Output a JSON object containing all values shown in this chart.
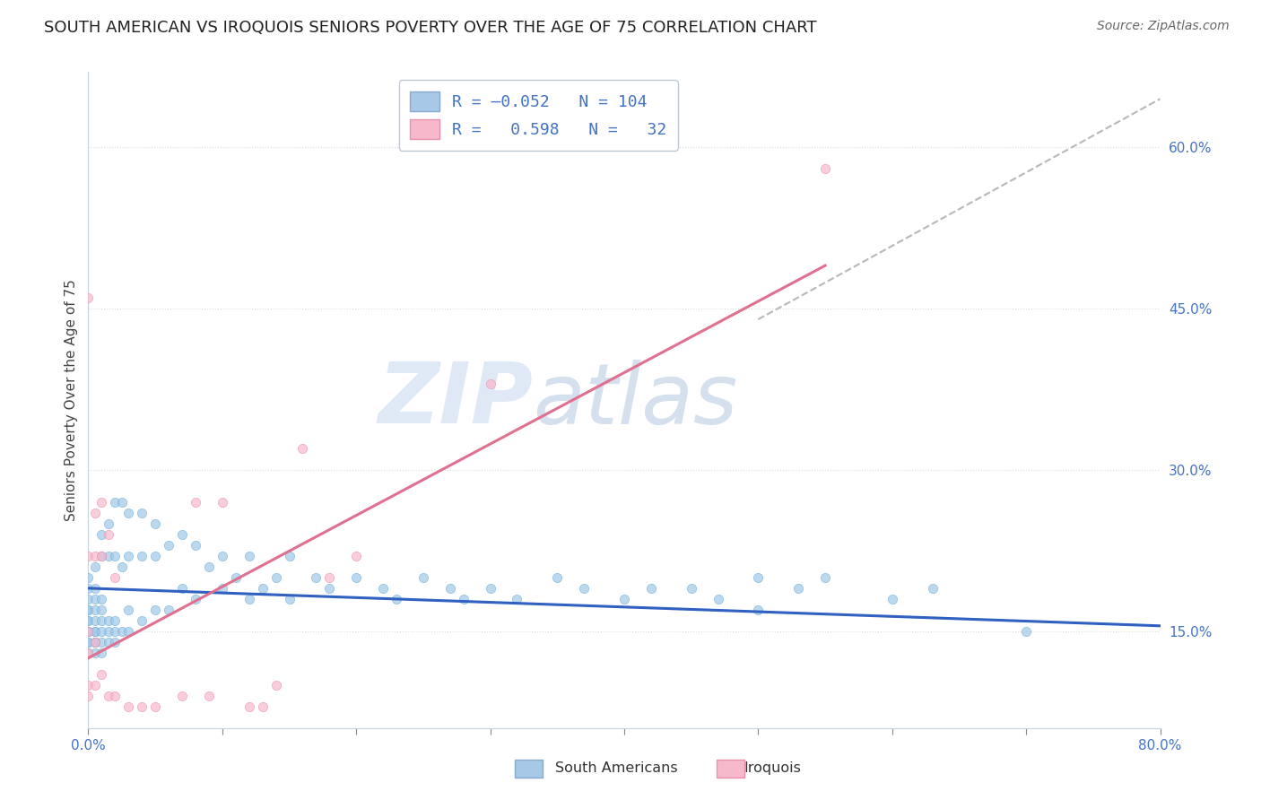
{
  "title": "SOUTH AMERICAN VS IROQUOIS SENIORS POVERTY OVER THE AGE OF 75 CORRELATION CHART",
  "source": "Source: ZipAtlas.com",
  "ylabel": "Seniors Poverty Over the Age of 75",
  "xlim": [
    0.0,
    0.8
  ],
  "ylim": [
    0.06,
    0.67
  ],
  "yticks": [
    0.15,
    0.3,
    0.45,
    0.6
  ],
  "yticklabels": [
    "15.0%",
    "30.0%",
    "45.0%",
    "60.0%"
  ],
  "blue_scatter_x": [
    0.0,
    0.0,
    0.0,
    0.0,
    0.0,
    0.0,
    0.0,
    0.0,
    0.0,
    0.0,
    0.0,
    0.0,
    0.005,
    0.005,
    0.005,
    0.005,
    0.005,
    0.005,
    0.005,
    0.005,
    0.005,
    0.005,
    0.01,
    0.01,
    0.01,
    0.01,
    0.01,
    0.01,
    0.01,
    0.01,
    0.015,
    0.015,
    0.015,
    0.015,
    0.015,
    0.02,
    0.02,
    0.02,
    0.02,
    0.02,
    0.025,
    0.025,
    0.025,
    0.03,
    0.03,
    0.03,
    0.03,
    0.04,
    0.04,
    0.04,
    0.05,
    0.05,
    0.05,
    0.06,
    0.06,
    0.07,
    0.07,
    0.08,
    0.08,
    0.09,
    0.1,
    0.1,
    0.11,
    0.12,
    0.12,
    0.13,
    0.14,
    0.15,
    0.15,
    0.17,
    0.18,
    0.2,
    0.22,
    0.23,
    0.25,
    0.27,
    0.28,
    0.3,
    0.32,
    0.35,
    0.37,
    0.4,
    0.42,
    0.45,
    0.47,
    0.5,
    0.5,
    0.53,
    0.55,
    0.6,
    0.63,
    0.7
  ],
  "blue_scatter_y": [
    0.13,
    0.14,
    0.14,
    0.15,
    0.15,
    0.16,
    0.16,
    0.17,
    0.17,
    0.18,
    0.19,
    0.2,
    0.13,
    0.14,
    0.14,
    0.15,
    0.15,
    0.16,
    0.17,
    0.18,
    0.19,
    0.21,
    0.13,
    0.14,
    0.15,
    0.16,
    0.17,
    0.18,
    0.22,
    0.24,
    0.14,
    0.15,
    0.16,
    0.22,
    0.25,
    0.14,
    0.15,
    0.16,
    0.22,
    0.27,
    0.15,
    0.21,
    0.27,
    0.15,
    0.17,
    0.22,
    0.26,
    0.16,
    0.22,
    0.26,
    0.17,
    0.22,
    0.25,
    0.17,
    0.23,
    0.19,
    0.24,
    0.18,
    0.23,
    0.21,
    0.19,
    0.22,
    0.2,
    0.18,
    0.22,
    0.19,
    0.2,
    0.18,
    0.22,
    0.2,
    0.19,
    0.2,
    0.19,
    0.18,
    0.2,
    0.19,
    0.18,
    0.19,
    0.18,
    0.2,
    0.19,
    0.18,
    0.19,
    0.19,
    0.18,
    0.2,
    0.17,
    0.19,
    0.2,
    0.18,
    0.19,
    0.15
  ],
  "pink_scatter_x": [
    0.0,
    0.0,
    0.0,
    0.0,
    0.0,
    0.0,
    0.005,
    0.005,
    0.005,
    0.005,
    0.01,
    0.01,
    0.01,
    0.015,
    0.015,
    0.02,
    0.02,
    0.03,
    0.04,
    0.05,
    0.07,
    0.08,
    0.09,
    0.1,
    0.12,
    0.13,
    0.14,
    0.16,
    0.18,
    0.2,
    0.3,
    0.55
  ],
  "pink_scatter_y": [
    0.09,
    0.1,
    0.13,
    0.15,
    0.22,
    0.46,
    0.1,
    0.14,
    0.22,
    0.26,
    0.11,
    0.22,
    0.27,
    0.09,
    0.24,
    0.09,
    0.2,
    0.08,
    0.08,
    0.08,
    0.09,
    0.27,
    0.09,
    0.27,
    0.08,
    0.08,
    0.1,
    0.32,
    0.2,
    0.22,
    0.38,
    0.58
  ],
  "blue_line": {
    "x0": 0.0,
    "x1": 0.8,
    "y0": 0.19,
    "y1": 0.155
  },
  "pink_line": {
    "x0": 0.0,
    "x1": 0.55,
    "y0": 0.125,
    "y1": 0.49
  },
  "gray_dashed_line": {
    "x0": 0.5,
    "x1": 0.8,
    "y0": 0.44,
    "y1": 0.645
  },
  "title_fontsize": 13,
  "axis_label_fontsize": 11,
  "tick_fontsize": 11,
  "watermark_zip": "ZIP",
  "watermark_atlas": "atlas",
  "bg_color": "#ffffff",
  "dot_alpha": 0.7,
  "dot_size": 55,
  "blue_dot_color": "#9ec8e8",
  "blue_dot_edge": "#6aaad4",
  "pink_dot_color": "#f8b8cc",
  "pink_dot_edge": "#e888a8",
  "blue_line_color": "#3060c0",
  "pink_line_color": "#e07090",
  "gray_line_color": "#b8b8b8",
  "tick_color": "#4472C4",
  "grid_color": "#d8dde8",
  "legend_text_color": "#4472C4"
}
